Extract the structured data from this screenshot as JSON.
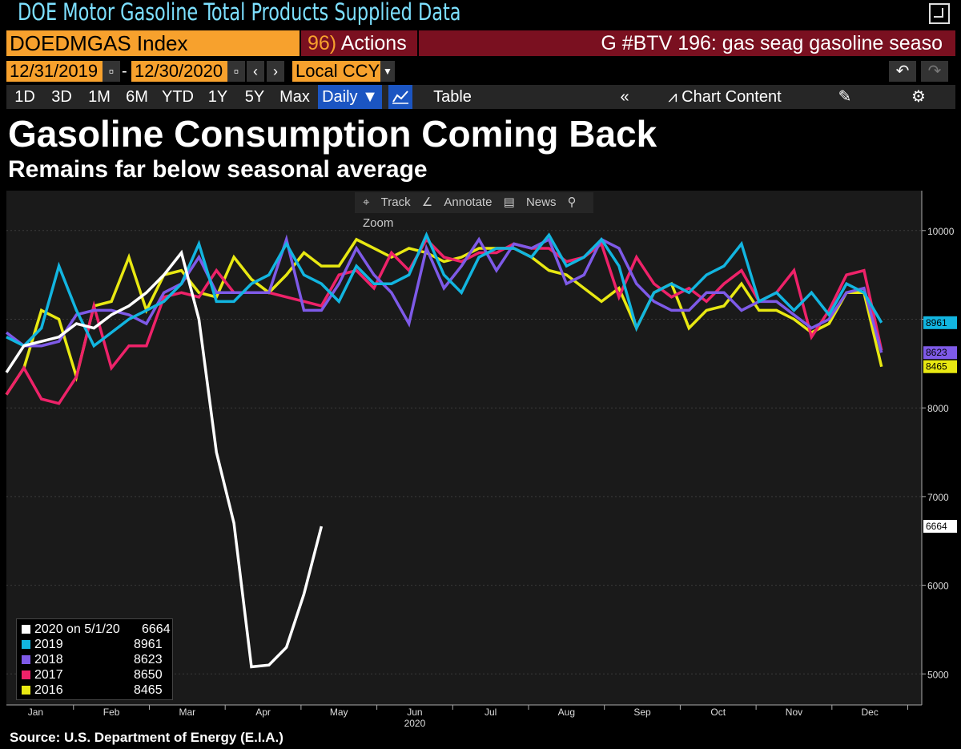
{
  "window": {
    "title": "DOE Motor Gasoline Total Products Supplied Data",
    "popout_icon": "popout-icon"
  },
  "header": {
    "ticker": "DOEDMGAS Index",
    "actions_num": "96)",
    "actions_label": "Actions",
    "command_text": "G #BTV 196: gas seag gasoline seaso",
    "start_date": "12/31/2019",
    "end_date": "12/30/2020",
    "date_sep": "-",
    "currency": "Local CCY"
  },
  "toolbar": {
    "periods": [
      "1D",
      "3D",
      "1M",
      "6M",
      "YTD",
      "1Y",
      "5Y",
      "Max"
    ],
    "frequency": "Daily",
    "table_label": "Table",
    "chart_content_label": "Chart Content"
  },
  "chart_tools": [
    "Track",
    "Annotate",
    "News",
    "Zoom"
  ],
  "source": "Source: U.S. Department of Energy (E.I.A.)",
  "colors": {
    "orange": "#f7a12d",
    "command_bar": "#7a1020",
    "selected": "#1b55c2"
  },
  "chart_data": {
    "type": "line",
    "title": "Gasoline Consumption Coming Back",
    "subtitle": "Remains far below seasonal average",
    "x_ticks": [
      "Jan",
      "Feb",
      "Mar",
      "Apr",
      "May",
      "Jun",
      "Jul",
      "Aug",
      "Sep",
      "Oct",
      "Nov",
      "Dec"
    ],
    "x_year_label": "2020",
    "y_ticks": [
      5000,
      6000,
      7000,
      8000,
      9000,
      10000
    ],
    "ylim": [
      4650,
      10450
    ],
    "xlim": [
      0,
      52.3
    ],
    "grid": true,
    "legend_position": "bottom-left",
    "series": [
      {
        "name": "2019",
        "color": "#12b5e0",
        "last_value": "8961",
        "values": [
          8800,
          8700,
          8900,
          9600,
          9100,
          8700,
          8850,
          9000,
          9100,
          9200,
          9400,
          9850,
          9200,
          9200,
          9400,
          9500,
          9850,
          9500,
          9400,
          9200,
          9600,
          9400,
          9400,
          9500,
          9950,
          9500,
          9300,
          9700,
          9800,
          9800,
          9700,
          9950,
          9600,
          9700,
          9900,
          9600,
          8900,
          9300,
          9400,
          9300,
          9500,
          9600,
          9850,
          9200,
          9300,
          9100,
          9300,
          9050,
          9400,
          9300,
          8961
        ]
      },
      {
        "name": "2018",
        "color": "#7e5ae8",
        "last_value": "8623",
        "values": [
          8850,
          8700,
          8700,
          8750,
          9050,
          9100,
          9100,
          9050,
          8950,
          9300,
          9400,
          9700,
          9300,
          9300,
          9300,
          9300,
          9900,
          9100,
          9100,
          9400,
          9800,
          9500,
          9300,
          8950,
          9800,
          9350,
          9600,
          9900,
          9550,
          9850,
          9800,
          9900,
          9400,
          9500,
          9900,
          9800,
          9400,
          9200,
          9100,
          9100,
          9300,
          9300,
          9100,
          9200,
          9200,
          9050,
          8900,
          9000,
          9300,
          9350,
          8623
        ]
      },
      {
        "name": "2017",
        "color": "#ee2269",
        "last_value": "8650",
        "values": [
          8150,
          8450,
          8100,
          8050,
          8350,
          9150,
          8450,
          8700,
          8700,
          9250,
          9300,
          9250,
          9550,
          9300,
          9300,
          9300,
          9250,
          9200,
          9150,
          9500,
          9550,
          9350,
          9750,
          9550,
          9900,
          9700,
          9650,
          9750,
          9750,
          9850,
          9800,
          9800,
          9650,
          9700,
          9850,
          9250,
          9700,
          9400,
          9250,
          9350,
          9200,
          9400,
          9550,
          9200,
          9300,
          9550,
          8800,
          9100,
          9500,
          9550,
          8650
        ]
      },
      {
        "name": "2016",
        "color": "#e8e812",
        "last_value": "8465",
        "values": [
          8150,
          8450,
          9100,
          9000,
          8350,
          9150,
          9200,
          9700,
          9100,
          9500,
          9550,
          9300,
          9250,
          9700,
          9450,
          9300,
          9500,
          9750,
          9600,
          9600,
          9900,
          9800,
          9700,
          9800,
          9750,
          9650,
          9700,
          9800,
          9800,
          9800,
          9700,
          9550,
          9500,
          9350,
          9200,
          9350,
          8900,
          9300,
          9400,
          8900,
          9100,
          9150,
          9400,
          9100,
          9100,
          9000,
          8850,
          8950,
          9300,
          9300,
          8465
        ]
      },
      {
        "name": "2020 on 5/1/20",
        "color": "#ffffff",
        "last_value": "6664",
        "values": [
          8400,
          8700,
          8750,
          8800,
          8950,
          8900,
          9050,
          9150,
          9300,
          9500,
          9750,
          9000,
          7500,
          6700,
          5080,
          5100,
          5300,
          5900,
          6664
        ]
      }
    ]
  }
}
